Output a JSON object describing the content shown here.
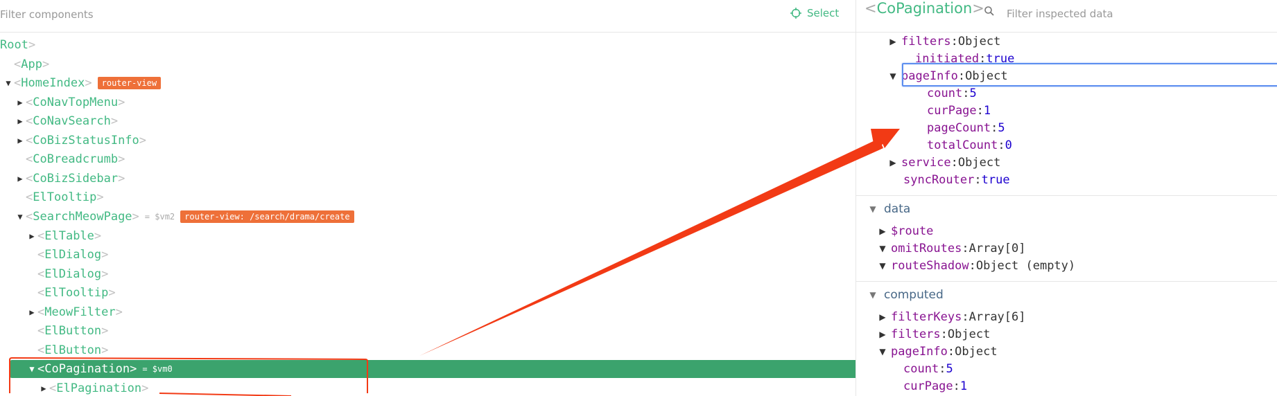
{
  "left_header": {
    "filter_placeholder": "Filter components",
    "select_label": "Select"
  },
  "tree": [
    {
      "indent": 0,
      "expand": "none",
      "name": "Root",
      "open_bracket": false
    },
    {
      "indent": 1,
      "expand": "none",
      "name": "App"
    },
    {
      "indent": 1,
      "expand": "open",
      "name": "HomeIndex",
      "tag": "router-view"
    },
    {
      "indent": 2,
      "expand": "closed",
      "name": "CoNavTopMenu"
    },
    {
      "indent": 2,
      "expand": "closed",
      "name": "CoNavSearch"
    },
    {
      "indent": 2,
      "expand": "closed",
      "name": "CoBizStatusInfo"
    },
    {
      "indent": 2,
      "expand": "none",
      "name": "CoBreadcrumb"
    },
    {
      "indent": 2,
      "expand": "closed",
      "name": "CoBizSidebar"
    },
    {
      "indent": 2,
      "expand": "none",
      "name": "ElTooltip"
    },
    {
      "indent": 2,
      "expand": "open",
      "name": "SearchMeowPage",
      "vm": "= $vm2",
      "tag": "router-view: /search/drama/create"
    },
    {
      "indent": 3,
      "expand": "closed",
      "name": "ElTable"
    },
    {
      "indent": 3,
      "expand": "none",
      "name": "ElDialog"
    },
    {
      "indent": 3,
      "expand": "none",
      "name": "ElDialog"
    },
    {
      "indent": 3,
      "expand": "none",
      "name": "ElTooltip"
    },
    {
      "indent": 3,
      "expand": "closed",
      "name": "MeowFilter"
    },
    {
      "indent": 3,
      "expand": "none",
      "name": "ElButton"
    },
    {
      "indent": 3,
      "expand": "none",
      "name": "ElButton"
    },
    {
      "indent": 3,
      "expand": "open",
      "name": "CoPagination",
      "vm": "= $vm0",
      "selected": true
    },
    {
      "indent": 4,
      "expand": "closed",
      "name": "ElPagination"
    }
  ],
  "inspector": {
    "title": "CoPagination",
    "filter_placeholder": "Filter inspected data",
    "props_rows": [
      {
        "level": 1,
        "expand": "closed",
        "key": "filters",
        "value": "Object",
        "vtype": "obj"
      },
      {
        "level": 1,
        "expand": "none",
        "key": "initiated",
        "value": "true",
        "vtype": "bool"
      },
      {
        "level": 1,
        "expand": "open",
        "key": "pageInfo",
        "value": "Object",
        "vtype": "obj",
        "highlight": true
      },
      {
        "level": 2,
        "expand": "none",
        "key": "count",
        "value": "5",
        "vtype": "num"
      },
      {
        "level": 2,
        "expand": "none",
        "key": "curPage",
        "value": "1",
        "vtype": "num"
      },
      {
        "level": 2,
        "expand": "none",
        "key": "pageCount",
        "value": "5",
        "vtype": "num"
      },
      {
        "level": 2,
        "expand": "none",
        "key": "totalCount",
        "value": "0",
        "vtype": "num"
      },
      {
        "level": 1,
        "expand": "closed",
        "key": "service",
        "value": "Object",
        "vtype": "obj"
      },
      {
        "level": 0,
        "expand": "none",
        "key": "syncRouter",
        "value": "true",
        "vtype": "bool"
      }
    ],
    "data_section": {
      "title": "data",
      "rows": [
        {
          "expand": "closed",
          "key": "$route",
          "value": "",
          "vtype": "obj"
        },
        {
          "expand": "open",
          "key": "omitRoutes",
          "value": "Array[0]",
          "vtype": "obj"
        },
        {
          "expand": "open",
          "key": "routeShadow",
          "value": "Object (empty)",
          "vtype": "obj"
        }
      ]
    },
    "computed_section": {
      "title": "computed",
      "rows": [
        {
          "level": 0,
          "expand": "closed",
          "key": "filterKeys",
          "value": "Array[6]",
          "vtype": "obj"
        },
        {
          "level": 0,
          "expand": "closed",
          "key": "filters",
          "value": "Object",
          "vtype": "obj"
        },
        {
          "level": 0,
          "expand": "open",
          "key": "pageInfo",
          "value": "Object",
          "vtype": "obj"
        },
        {
          "level": 1,
          "expand": "none",
          "key": "count",
          "value": "5",
          "vtype": "num"
        },
        {
          "level": 1,
          "expand": "none",
          "key": "curPage",
          "value": "1",
          "vtype": "num"
        }
      ]
    }
  },
  "colors": {
    "vue_green": "#42b983",
    "selected_row": "#3ba36d",
    "tag_orange": "#ee7039",
    "annotation_red": "#f23a15",
    "highlight_blue": "#5b8def"
  }
}
